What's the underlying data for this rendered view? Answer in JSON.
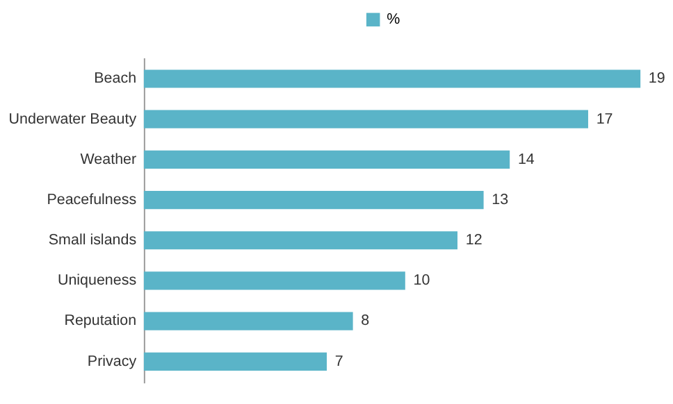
{
  "chart_data": {
    "type": "bar",
    "orientation": "horizontal",
    "categories": [
      "Beach",
      "Underwater Beauty",
      "Weather",
      "Peacefulness",
      "Small islands",
      "Uniqueness",
      "Reputation",
      "Privacy"
    ],
    "series": [
      {
        "name": "%",
        "color": "#5ab4c8",
        "values": [
          19,
          17,
          14,
          13,
          12,
          10,
          8,
          7
        ]
      }
    ],
    "data_labels": true,
    "legend": "top"
  }
}
